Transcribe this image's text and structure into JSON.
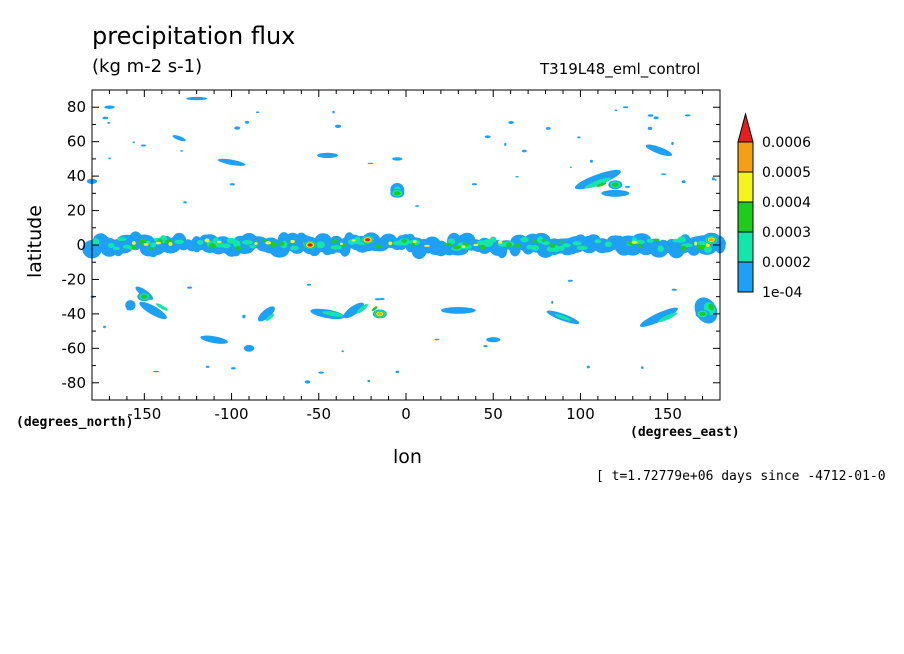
{
  "header": {
    "title": "precipitation flux",
    "units": "(kg m-2 s-1)",
    "run_id": "T319L48_eml_control"
  },
  "axes": {
    "xlabel": "lon",
    "ylabel": "latitude",
    "x_unit": "(degrees_east)",
    "y_unit": "(degrees_north)"
  },
  "footer": {
    "timestamp": "[ t=1.72779e+06 days since -4712-01-0"
  },
  "chart_data": {
    "type": "heatmap",
    "title": "precipitation flux",
    "units": "(kg m-2 s-1)",
    "xlabel": "lon",
    "ylabel": "latitude",
    "xlim": [
      -180,
      180
    ],
    "ylim": [
      -90,
      90
    ],
    "xticks": [
      -150,
      -100,
      -50,
      0,
      50,
      100,
      150
    ],
    "yticks": [
      -80,
      -60,
      -40,
      -20,
      0,
      20,
      40,
      60,
      80
    ],
    "xtick_labels": [
      "-150",
      "-100",
      "-50",
      "0",
      "50",
      "100",
      "150"
    ],
    "ytick_labels": [
      "-80",
      "-60",
      "-40",
      "-20",
      "0",
      "20",
      "40",
      "60",
      "80"
    ],
    "colorbar": {
      "levels": [
        0.0001,
        0.0002,
        0.0003,
        0.0004,
        0.0005,
        0.0006
      ],
      "labels": [
        "1e-04",
        "0.0002",
        "0.0003",
        "0.0004",
        "0.0005",
        "0.0006"
      ],
      "colors": [
        "#1ea0f5",
        "#14e6aa",
        "#1ecc1e",
        "#f5f51e",
        "#f5a014",
        "#e61e1e"
      ],
      "extend": "max"
    },
    "features": [
      {
        "name": "itcz-band",
        "lon": [
          -180,
          180
        ],
        "lat": [
          -8,
          8
        ],
        "max_level": 0.0006
      },
      {
        "name": "peak-atlantic",
        "lon": -22,
        "lat": 3,
        "level": 0.0006
      },
      {
        "name": "peak-south-america",
        "lon": -55,
        "lat": 0,
        "level": 0.0006
      },
      {
        "name": "peak-west-pacific",
        "lon": 175,
        "lat": 3,
        "level": 0.0005
      },
      {
        "name": "nh-storm-pacific",
        "lon": 120,
        "lat": 35,
        "level": 0.0003
      },
      {
        "name": "nh-storm-atlantic",
        "lon": -5,
        "lat": 30,
        "level": 0.0003
      },
      {
        "name": "sh-storm-south-pacific",
        "lon": -150,
        "lat": -30,
        "level": 0.0003
      },
      {
        "name": "sh-storm-south-atlantic",
        "lon": -15,
        "lat": -40,
        "level": 0.0005
      },
      {
        "name": "sh-storm-southern-ocean",
        "lon": 170,
        "lat": -40,
        "level": 0.0003
      }
    ],
    "grid": false,
    "legend": "right"
  }
}
